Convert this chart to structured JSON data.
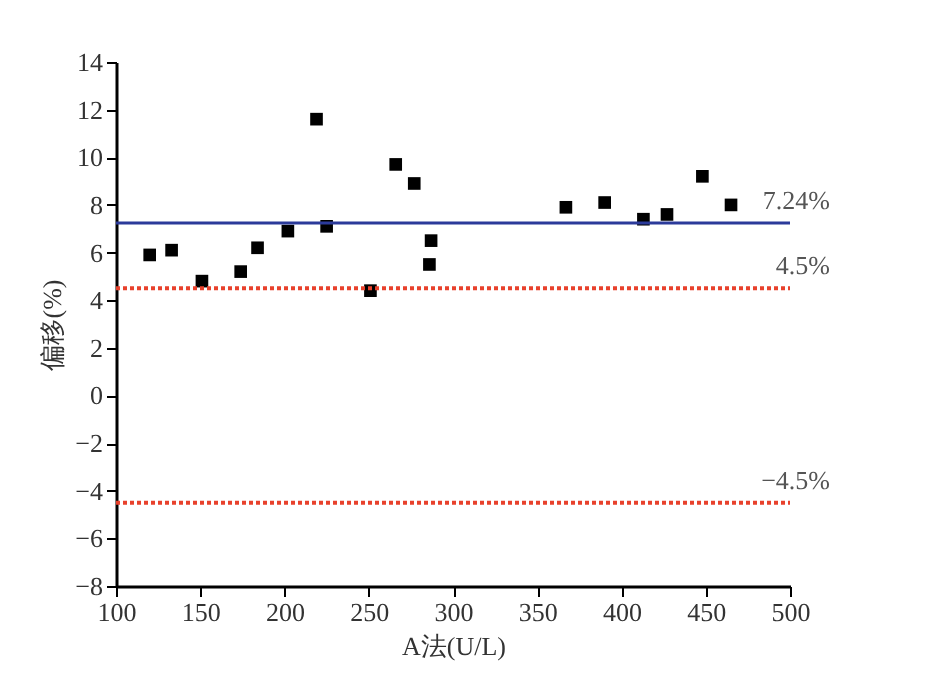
{
  "chart_data": {
    "type": "scatter",
    "xlabel": "A法(U/L)",
    "ylabel": "偏移(%)",
    "x": [
      120,
      133,
      151,
      174,
      184,
      202,
      219,
      225,
      251,
      266,
      277,
      286,
      287,
      367,
      390,
      413,
      427,
      448,
      465
    ],
    "series": [
      {
        "color": "#000000",
        "values": [
          5.9,
          6.1,
          4.8,
          5.2,
          6.2,
          6.9,
          11.6,
          7.1,
          4.4,
          9.7,
          8.9,
          5.5,
          6.5,
          7.9,
          8.1,
          7.4,
          7.6,
          9.2,
          8.0
        ]
      }
    ],
    "marker": "square",
    "xlim": [
      100,
      500
    ],
    "xticks": [
      100,
      150,
      200,
      250,
      300,
      350,
      400,
      450,
      500
    ],
    "ylim": [
      -8,
      14
    ],
    "yticks": [
      -8,
      -6,
      -4,
      -2,
      0,
      2,
      4,
      6,
      8,
      10,
      12,
      14
    ],
    "ref_lines": [
      {
        "axis": "y",
        "value": 7.24,
        "label": "7.24%",
        "color": "#2b3a9a",
        "line_style": "solid"
      },
      {
        "axis": "y",
        "value": 4.5,
        "label": "4.5%",
        "color": "#e8412c",
        "line_style": "dotted"
      },
      {
        "axis": "y",
        "value": -4.5,
        "label": "−4.5%",
        "color": "#e8412c",
        "line_style": "dotted"
      }
    ],
    "grid": false
  }
}
